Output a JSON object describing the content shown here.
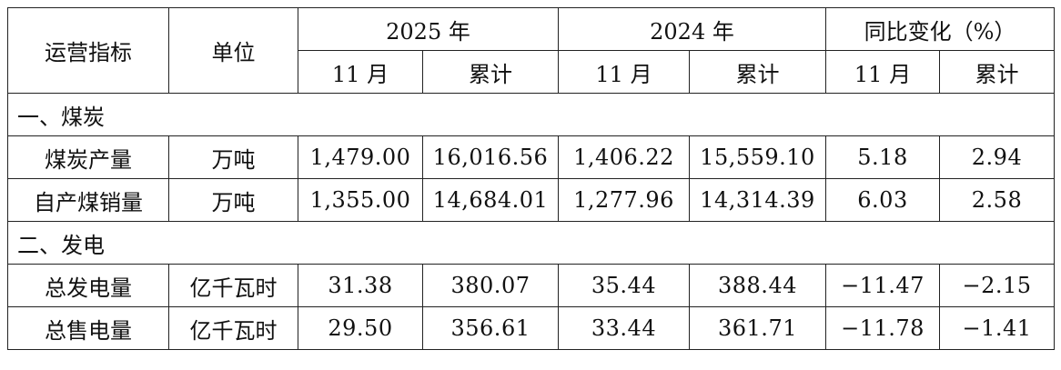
{
  "header": {
    "indicator": "运营指标",
    "unit": "单位",
    "year_2025": "2025 年",
    "year_2024": "2024 年",
    "yoy": "同比变化（%）",
    "sub": [
      "11 月",
      "累计",
      "11 月",
      "累计",
      "11 月",
      "累计"
    ]
  },
  "sections": [
    {
      "title": "一、煤炭",
      "rows": [
        {
          "name": "煤炭产量",
          "unit": "万吨",
          "values": [
            "1,479.00",
            "16,016.56",
            "1,406.22",
            "15,559.10",
            "5.18",
            "2.94"
          ]
        },
        {
          "name": "自产煤销量",
          "unit": "万吨",
          "values": [
            "1,355.00",
            "14,684.01",
            "1,277.96",
            "14,314.39",
            "6.03",
            "2.58"
          ]
        }
      ]
    },
    {
      "title": "二、发电",
      "rows": [
        {
          "name": "总发电量",
          "unit": "亿千瓦时",
          "values": [
            "31.38",
            "380.07",
            "35.44",
            "388.44",
            "−11.47",
            "−2.15"
          ]
        },
        {
          "name": "总售电量",
          "unit": "亿千瓦时",
          "values": [
            "29.50",
            "356.61",
            "33.44",
            "361.71",
            "−11.78",
            "−1.41"
          ]
        }
      ]
    }
  ]
}
